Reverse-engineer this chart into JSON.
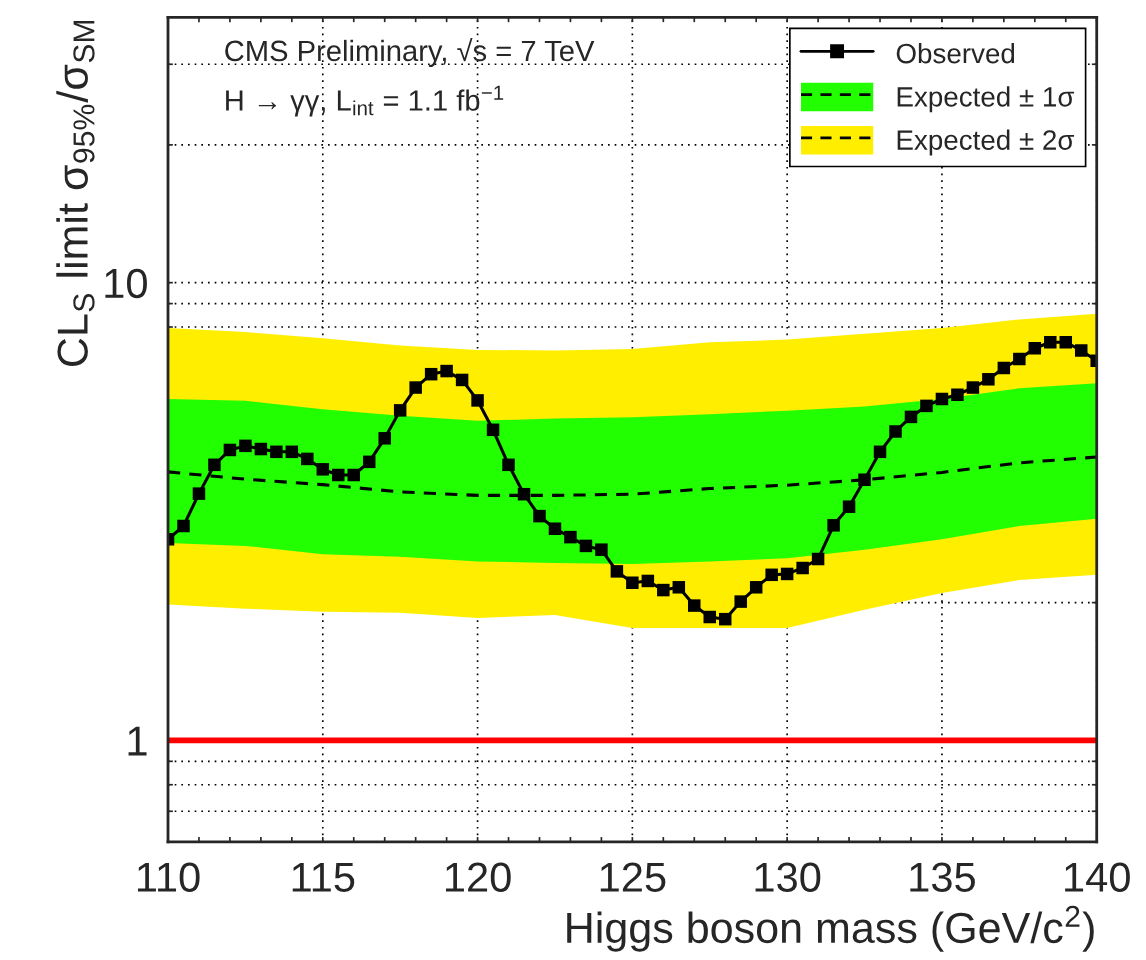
{
  "chart_data": {
    "type": "line",
    "xlabel": "Higgs boson mass (GeV/c$^{2}$)",
    "ylabel": "CL$_{S}$ limit σ$_{95%}$/σ$_{SM}$",
    "annotations": [
      "CMS Preliminary, √s = 7 TeV",
      "H → γγ, L$_{int}$ = 1.1 fb$^{−1}$"
    ],
    "xlim": [
      110,
      140
    ],
    "xticks": [
      110,
      {
        "value": 111,
        "label": null
      },
      {
        "value": 112,
        "label": null
      },
      {
        "value": 113,
        "label": null
      },
      {
        "value": 114,
        "label": null
      },
      115,
      {
        "value": 116,
        "label": null
      },
      {
        "value": 117,
        "label": null
      },
      {
        "value": 118,
        "label": null
      },
      {
        "value": 119,
        "label": null
      },
      120,
      {
        "value": 121,
        "label": null
      },
      {
        "value": 122,
        "label": null
      },
      {
        "value": 123,
        "label": null
      },
      {
        "value": 124,
        "label": null
      },
      125,
      {
        "value": 126,
        "label": null
      },
      {
        "value": 127,
        "label": null
      },
      {
        "value": 128,
        "label": null
      },
      {
        "value": 129,
        "label": null
      },
      130,
      {
        "value": 131,
        "label": null
      },
      {
        "value": 132,
        "label": null
      },
      {
        "value": 133,
        "label": null
      },
      {
        "value": 134,
        "label": null
      },
      135,
      {
        "value": 136,
        "label": null
      },
      {
        "value": 137,
        "label": null
      },
      {
        "value": 138,
        "label": null
      },
      {
        "value": 139,
        "label": null
      },
      140
    ],
    "ylim": [
      0.6,
      38
    ],
    "yticks": [
      {
        "value": 0.7,
        "label": null
      },
      {
        "value": 0.8,
        "label": null
      },
      {
        "value": 0.9,
        "label": null
      },
      1,
      {
        "value": 2,
        "label": null
      },
      {
        "value": 3,
        "label": null
      },
      {
        "value": 4,
        "label": null
      },
      {
        "value": 5,
        "label": null
      },
      {
        "value": 6,
        "label": null
      },
      {
        "value": 7,
        "label": null
      },
      {
        "value": 8,
        "label": null
      },
      {
        "value": 9,
        "label": null
      },
      10,
      {
        "value": 20,
        "label": null
      },
      {
        "value": 30,
        "label": null
      }
    ],
    "log": "y",
    "grid": true,
    "legend": "top right",
    "ref_lines": [
      {
        "axis": "y",
        "value": 1,
        "color": "#ff0000"
      }
    ],
    "series": [
      {
        "name": "Observed",
        "marker": "square",
        "line_style": "solid",
        "color": "#000000",
        "x": [
          110,
          110.5,
          111,
          111.5,
          112,
          112.5,
          113,
          113.5,
          114,
          114.5,
          115,
          115.5,
          116,
          116.5,
          117,
          117.5,
          118,
          118.5,
          119,
          119.5,
          120,
          120.5,
          121,
          121.5,
          122,
          122.5,
          123,
          123.5,
          124,
          124.5,
          125,
          125.5,
          126,
          126.5,
          127,
          127.5,
          128,
          128.5,
          129,
          129.5,
          130,
          130.5,
          131,
          131.5,
          132,
          132.5,
          133,
          133.5,
          134,
          134.5,
          135,
          135.5,
          136,
          136.5,
          137,
          137.5,
          138,
          138.5,
          139,
          139.5,
          140
        ],
        "values": [
          2.75,
          2.94,
          3.46,
          4.0,
          4.31,
          4.4,
          4.33,
          4.27,
          4.27,
          4.12,
          3.91,
          3.8,
          3.8,
          4.06,
          4.57,
          5.26,
          5.9,
          6.31,
          6.41,
          6.13,
          5.53,
          4.77,
          4.0,
          3.45,
          3.09,
          2.9,
          2.78,
          2.66,
          2.61,
          2.34,
          2.21,
          2.23,
          2.13,
          2.16,
          1.97,
          1.86,
          1.84,
          2.01,
          2.16,
          2.3,
          2.31,
          2.38,
          2.49,
          2.95,
          3.24,
          3.71,
          4.27,
          4.73,
          5.09,
          5.38,
          5.57,
          5.69,
          5.9,
          6.15,
          6.51,
          6.81,
          7.19,
          7.41,
          7.41,
          7.11,
          6.75
        ]
      },
      {
        "name": "Expected ± 1σ",
        "type": "line",
        "marker": "none",
        "line_style": "dashed",
        "color": "#000000",
        "x": [
          110,
          112.5,
          115,
          117.5,
          120,
          122.5,
          125,
          127.5,
          130,
          132.5,
          135,
          137.5,
          140
        ],
        "values": [
          3.86,
          3.72,
          3.62,
          3.49,
          3.43,
          3.43,
          3.45,
          3.55,
          3.61,
          3.71,
          3.85,
          4.04,
          4.16
        ],
        "lower": [
          2.7,
          2.66,
          2.55,
          2.52,
          2.46,
          2.44,
          2.43,
          2.46,
          2.5,
          2.61,
          2.75,
          2.94,
          3.05
        ],
        "upper": [
          5.57,
          5.52,
          5.29,
          5.12,
          4.99,
          5.05,
          5.08,
          5.16,
          5.25,
          5.36,
          5.57,
          5.88,
          6.03
        ]
      },
      {
        "name": "Expected ± 2σ",
        "type": "line",
        "marker": "none",
        "line_style": "dashed",
        "color": "#000000",
        "x": [
          110,
          112.5,
          115,
          117.5,
          120,
          122.5,
          125,
          127.5,
          130,
          132.5,
          135,
          137.5,
          140
        ],
        "values": [
          null,
          null,
          null,
          null,
          null,
          null,
          null,
          null,
          null,
          null,
          null,
          null,
          null
        ],
        "lower": [
          1.98,
          1.94,
          1.91,
          1.9,
          1.85,
          1.88,
          1.76,
          1.76,
          1.76,
          1.93,
          2.1,
          2.24,
          2.3
        ],
        "upper": [
          7.96,
          7.8,
          7.56,
          7.29,
          7.13,
          7.11,
          7.16,
          7.41,
          7.51,
          7.73,
          7.96,
          8.31,
          8.55
        ]
      }
    ]
  }
}
